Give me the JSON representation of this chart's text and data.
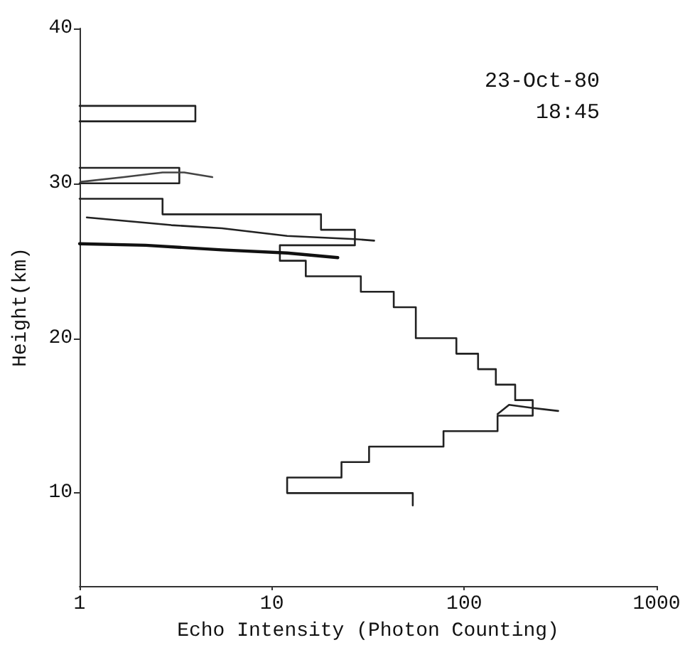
{
  "chart_data": {
    "type": "line",
    "xlabel": "Echo Intensity (Photon Counting)",
    "ylabel": "Height(km)",
    "annotations": [
      "23-Oct-80",
      "18:45"
    ],
    "log": "x",
    "xlim": [
      1,
      1000
    ],
    "xticks": [
      1,
      10,
      100,
      1000
    ],
    "ylim": [
      4,
      40
    ],
    "yticks": [
      10,
      20,
      30,
      40
    ],
    "grid": false,
    "marker": "none",
    "line_style": "solid",
    "series": [
      {
        "color": "#222222",
        "x": [
          54,
          54,
          12,
          12,
          23,
          23,
          32,
          32,
          78,
          78,
          149,
          149,
          227,
          227,
          184,
          184,
          146,
          146,
          118,
          118,
          91,
          91,
          56,
          56,
          43,
          43,
          29,
          29,
          15,
          15,
          11,
          11,
          27,
          27,
          18,
          18,
          2.7,
          2.7,
          1
        ],
        "values": [
          9.2,
          10,
          10,
          11,
          11,
          12,
          12,
          13,
          13,
          14,
          14,
          15,
          15,
          16,
          16,
          17,
          17,
          18,
          18,
          19,
          19,
          20,
          20,
          22,
          22,
          23,
          23,
          24,
          24,
          25,
          25,
          26,
          26,
          27,
          27,
          28,
          28,
          29,
          29
        ]
      },
      {
        "color": "#222222",
        "x": [
          1,
          3.3,
          3.3,
          1
        ],
        "values": [
          30,
          30,
          31,
          31
        ]
      },
      {
        "color": "#222222",
        "x": [
          1,
          4,
          4,
          1
        ],
        "values": [
          34,
          34,
          35,
          35
        ]
      },
      {
        "color": "#222222",
        "x": [
          1.09,
          3,
          5.5,
          12,
          27,
          34
        ],
        "values": [
          27.8,
          27.3,
          27.1,
          26.6,
          26.4,
          26.3
        ]
      },
      {
        "color": "#111111",
        "x": [
          1,
          2.2,
          5.5,
          12,
          22
        ],
        "values": [
          26.1,
          26,
          25.7,
          25.5,
          25.2
        ]
      },
      {
        "color": "#444444",
        "x": [
          1.02,
          1.7,
          2.7,
          3.5,
          4.9
        ],
        "values": [
          30.1,
          30.4,
          30.7,
          30.7,
          30.4
        ]
      },
      {
        "color": "#222222",
        "x": [
          149,
          171,
          224,
          308
        ],
        "values": [
          15.1,
          15.7,
          15.5,
          15.3
        ]
      }
    ]
  }
}
